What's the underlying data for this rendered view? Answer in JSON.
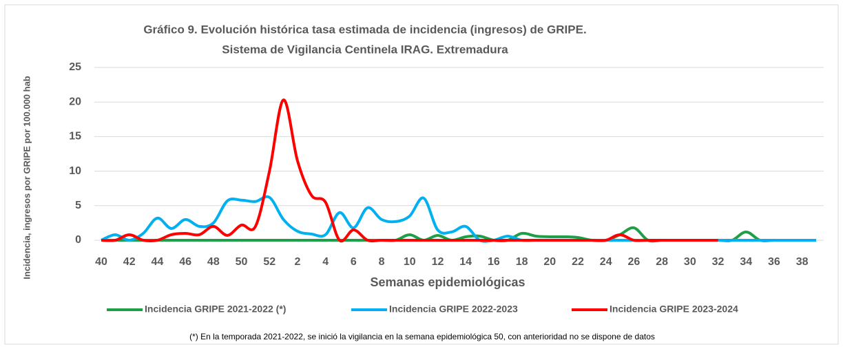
{
  "chart_data": {
    "type": "line",
    "title": "Gráfico 9. Evolución histórica tasa estimada de incidencia (ingresos) de GRIPE.",
    "subtitle": "Sistema de Vigilancia Centinela IRAG. Extremadura",
    "x_label": "Semanas epidemiológicas",
    "y_label": "Incidencia, ingresos por GRIPE por  100.000 hab",
    "note": "(*) En la temporada 2021-2022, se inició la vigilancia en la semana epidemiológica 50, con anterioridad no se dispone de datos",
    "categories": [
      40,
      null,
      42,
      null,
      44,
      null,
      46,
      null,
      48,
      null,
      50,
      null,
      52,
      null,
      2,
      null,
      4,
      null,
      6,
      null,
      8,
      null,
      10,
      null,
      12,
      null,
      14,
      null,
      16,
      null,
      18,
      null,
      20,
      null,
      22,
      null,
      24,
      null,
      26,
      null,
      28,
      null,
      30,
      null,
      32,
      null,
      34,
      null,
      36,
      null,
      38,
      null
    ],
    "ylim": [
      0,
      25
    ],
    "yticks": [
      0,
      5,
      10,
      15,
      20,
      25
    ],
    "grid": true,
    "legend": "bottom",
    "series": [
      {
        "name": "Incidencia GRIPE 2021-2022 (*)",
        "color": "#1e9e46",
        "values": [
          0,
          0,
          0,
          0,
          0,
          0,
          0,
          0,
          0,
          0,
          0,
          0,
          0,
          0,
          0,
          0,
          0,
          0,
          0,
          0,
          0,
          0,
          0.8,
          0,
          0.7,
          0,
          0.5,
          0.6,
          0,
          0,
          1.0,
          0.6,
          0.5,
          0.5,
          0.4,
          0,
          0,
          0.8,
          1.8,
          0,
          0,
          0,
          0,
          0,
          0,
          0,
          1.2,
          0,
          0,
          0,
          0,
          0
        ]
      },
      {
        "name": "Incidencia GRIPE 2022-2023",
        "color": "#00b0f0",
        "values": [
          0,
          0.8,
          0,
          1.0,
          3.2,
          1.7,
          3.0,
          2.0,
          2.5,
          5.7,
          5.8,
          5.6,
          6.2,
          3.0,
          1.3,
          0.9,
          0.8,
          4.0,
          1.8,
          4.7,
          3.0,
          2.7,
          3.5,
          6.1,
          1.5,
          1.2,
          2.0,
          0,
          0,
          0.6,
          0,
          0,
          0,
          0,
          0,
          0,
          0,
          0,
          0,
          0,
          0,
          0,
          0,
          0,
          0,
          0,
          0,
          0,
          0,
          0,
          0,
          0
        ]
      },
      {
        "name": "Incidencia GRIPE 2023-2024",
        "color": "#ff0000",
        "values": [
          0,
          0,
          0.8,
          0,
          0,
          0.8,
          1.0,
          0.8,
          2.0,
          0.7,
          2.2,
          2.0,
          10,
          20.3,
          11.5,
          6.5,
          5.5,
          0,
          1.5,
          0,
          0,
          0,
          0,
          0,
          0,
          0,
          0,
          0,
          0,
          0,
          0,
          0,
          0,
          0,
          0,
          0,
          0,
          0.8,
          0,
          0,
          0,
          0,
          0,
          0,
          0,
          null,
          null,
          null,
          null,
          null,
          null,
          null
        ]
      }
    ]
  }
}
